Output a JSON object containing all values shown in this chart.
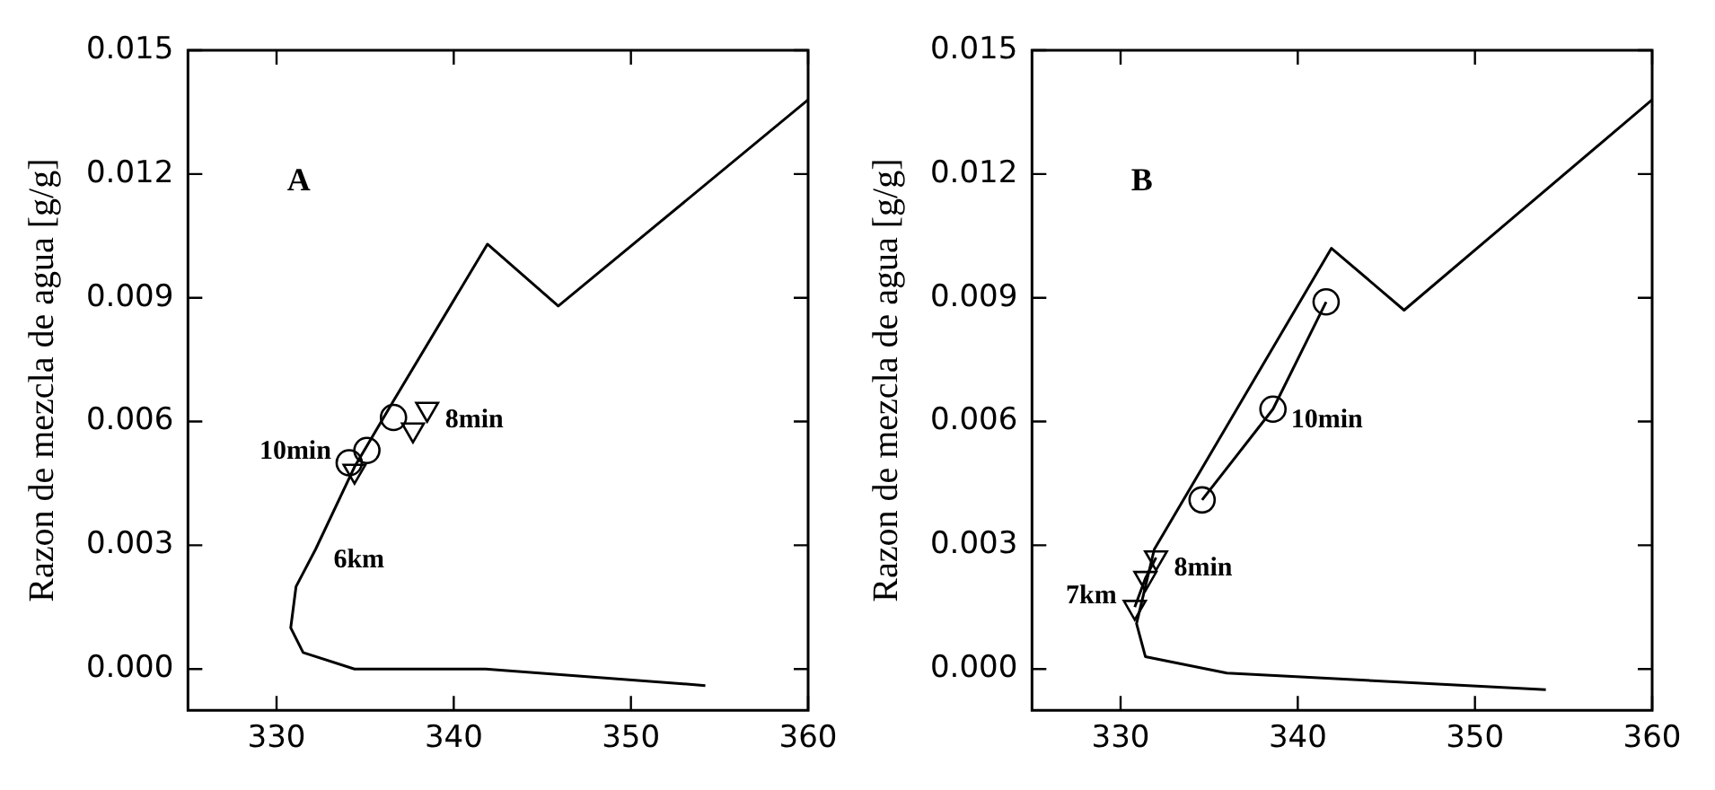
{
  "chart_data": [
    {
      "type": "line",
      "ylabel": "Razon de mezcla de agua [g/g]",
      "xlim": [
        325,
        360
      ],
      "xticks": [
        330,
        340,
        350,
        360
      ],
      "ylim": [
        -0.001,
        0.015
      ],
      "yticks": [
        {
          "value": 0,
          "label": "0.000"
        },
        {
          "value": 0.003,
          "label": "0.003"
        },
        {
          "value": 0.006,
          "label": "0.006"
        },
        {
          "value": 0.009,
          "label": "0.009"
        },
        {
          "value": 0.012,
          "label": "0.012"
        },
        {
          "value": 0.015,
          "label": "0.015"
        }
      ],
      "grid": false,
      "legend": false,
      "series": [
        {
          "type": "line",
          "marker": "none",
          "color": "#000000",
          "x": [
            354.2,
            341.8,
            334.4,
            331.5,
            330.8,
            331.1,
            332.2,
            334.4,
            336.6,
            341.9,
            345.9,
            360
          ],
          "values": [
            -0.0004,
            0,
            0,
            0.0004,
            0.001,
            0.002,
            0.0029,
            0.0049,
            0.0065,
            0.0103,
            0.0088,
            0.0138
          ]
        },
        {
          "type": "scatter",
          "marker": "circle",
          "color": "#000000",
          "x": [
            334.1,
            335.1,
            336.6
          ],
          "values": [
            0.005,
            0.0053,
            0.0061
          ]
        },
        {
          "type": "scatter",
          "marker": "triangle",
          "color": "#000000",
          "x": [
            334.4,
            337.7,
            338.5
          ],
          "values": [
            0.0048,
            0.0058,
            0.0063
          ]
        }
      ],
      "annotations": [
        "A",
        {
          "text": "10min",
          "x": 334.1,
          "y": 0.005
        },
        {
          "text": "8min",
          "x": 338.5,
          "y": 0.0063
        },
        {
          "text": "6km",
          "x": 332.2,
          "y": 0.0029
        }
      ]
    },
    {
      "type": "line",
      "ylabel": "Razon de mezcla de agua [g/g]",
      "xlim": [
        325,
        360
      ],
      "xticks": [
        330,
        340,
        350,
        360
      ],
      "ylim": [
        -0.001,
        0.015
      ],
      "yticks": [
        {
          "value": 0,
          "label": "0.000"
        },
        {
          "value": 0.003,
          "label": "0.003"
        },
        {
          "value": 0.006,
          "label": "0.006"
        },
        {
          "value": 0.009,
          "label": "0.009"
        },
        {
          "value": 0.012,
          "label": "0.012"
        },
        {
          "value": 0.015,
          "label": "0.015"
        }
      ],
      "grid": false,
      "legend": false,
      "series": [
        {
          "type": "line",
          "marker": "none",
          "color": "#000000",
          "x": [
            354,
            336,
            331.4,
            330.9,
            331.9,
            341.9,
            346,
            360
          ],
          "values": [
            -0.0005,
            -0.0001,
            0.0003,
            0.0011,
            0.0029,
            0.0102,
            0.0087,
            0.0138
          ]
        },
        {
          "type": "line",
          "marker": "circle",
          "color": "#000000",
          "x": [
            334.6,
            338.6,
            341.6
          ],
          "values": [
            0.0041,
            0.0063,
            0.0089
          ]
        },
        {
          "type": "line",
          "marker": "triangle",
          "color": "#000000",
          "x": [
            330.8,
            331.4,
            332
          ],
          "values": [
            0.0015,
            0.0022,
            0.0027
          ]
        }
      ],
      "annotations": [
        "B",
        {
          "text": "10min",
          "x": 338.6,
          "y": 0.0063
        },
        {
          "text": "8min",
          "x": 332,
          "y": 0.0027
        },
        {
          "text": "7km",
          "x": 330.8,
          "y": 0.0015
        }
      ]
    }
  ]
}
